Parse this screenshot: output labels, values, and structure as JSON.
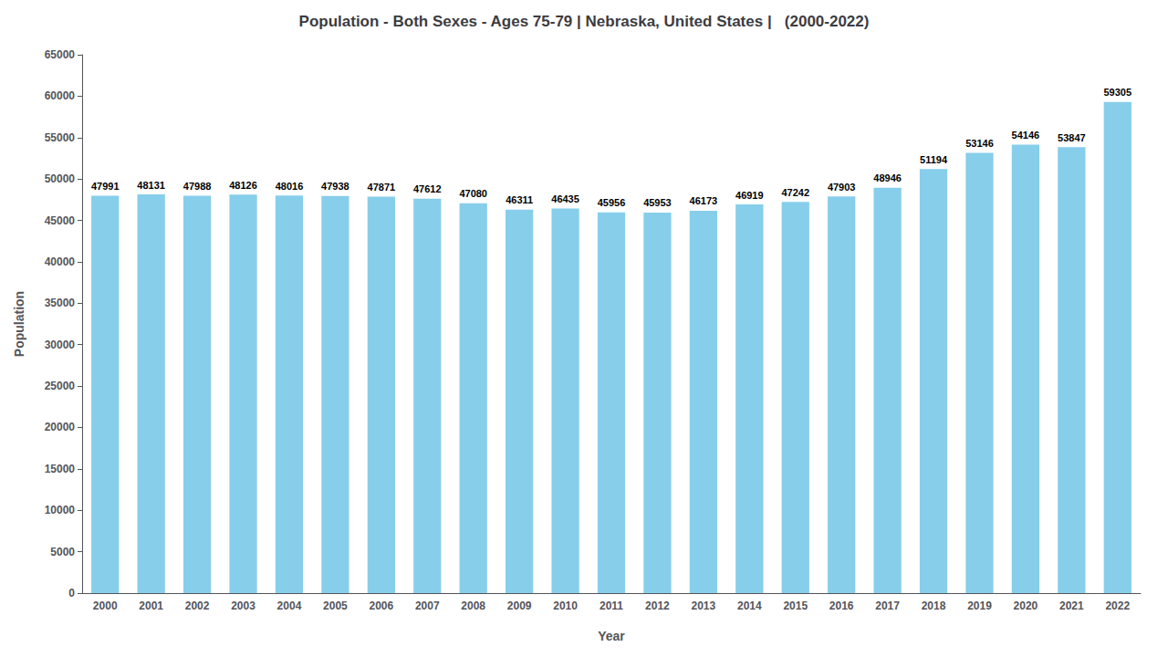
{
  "chart_data": {
    "type": "bar",
    "title": "Population - Both Sexes - Ages 75-79 | Nebraska, United States |   (2000-2022)",
    "xlabel": "Year",
    "ylabel": "Population",
    "categories": [
      "2000",
      "2001",
      "2002",
      "2003",
      "2004",
      "2005",
      "2006",
      "2007",
      "2008",
      "2009",
      "2010",
      "2011",
      "2012",
      "2013",
      "2014",
      "2015",
      "2016",
      "2017",
      "2018",
      "2019",
      "2020",
      "2021",
      "2022"
    ],
    "values": [
      47991,
      48131,
      47988,
      48126,
      48016,
      47938,
      47871,
      47612,
      47080,
      46311,
      46435,
      45956,
      45953,
      46173,
      46919,
      47242,
      47903,
      48946,
      51194,
      53146,
      54146,
      53847,
      59305
    ],
    "color": "#87CEEB",
    "ylim": [
      0,
      65000
    ],
    "yticks": [
      0,
      5000,
      10000,
      15000,
      20000,
      25000,
      30000,
      35000,
      40000,
      45000,
      50000,
      55000,
      60000,
      65000
    ],
    "data_labels": true,
    "grid": false
  }
}
